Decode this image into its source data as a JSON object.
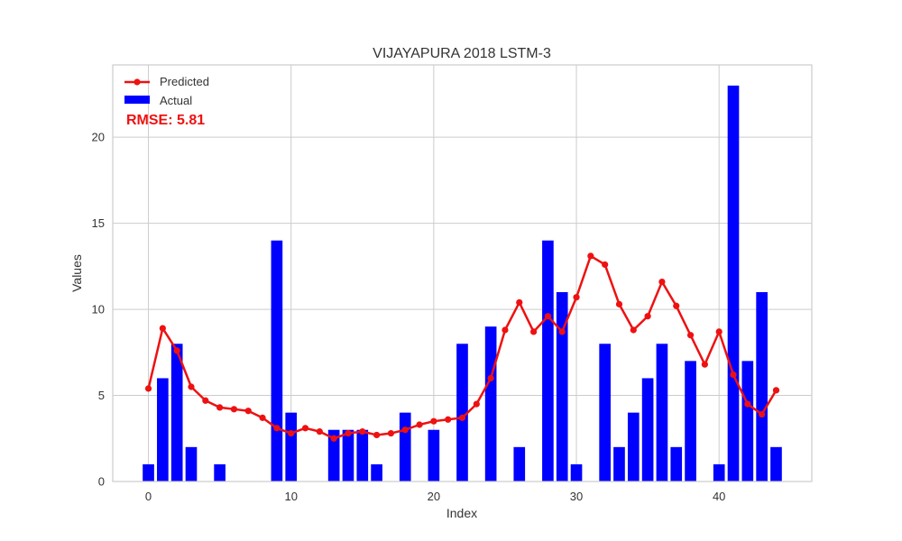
{
  "chart_data": {
    "type": "bar",
    "title": "VIJAYAPURA 2018 LSTM-3",
    "xlabel": "Index",
    "ylabel": "Values",
    "xlim": [
      -2.5,
      46.5
    ],
    "ylim": [
      0,
      24.2
    ],
    "xticks": [
      0,
      10,
      20,
      30,
      40
    ],
    "yticks": [
      0,
      5,
      10,
      15,
      20
    ],
    "grid": true,
    "legend_position": "top-left",
    "annotation": "RMSE: 5.81",
    "colors": {
      "actual": "#0000ff",
      "predicted": "#ee1111",
      "annotation": "#ee1111",
      "grid": "#cccccc",
      "frame": "#cccccc"
    },
    "series": [
      {
        "name": "Predicted",
        "type": "line",
        "values": [
          5.4,
          8.9,
          7.6,
          5.5,
          4.7,
          4.3,
          4.2,
          4.1,
          3.7,
          3.1,
          2.8,
          3.1,
          2.9,
          2.5,
          2.8,
          2.9,
          2.7,
          2.8,
          3.0,
          3.3,
          3.5,
          3.6,
          3.7,
          4.5,
          6.0,
          8.8,
          10.4,
          8.7,
          9.6,
          8.7,
          10.7,
          13.1,
          12.6,
          10.3,
          8.8,
          9.6,
          11.6,
          10.2,
          8.5,
          6.8,
          8.7,
          6.2,
          4.5,
          3.9,
          5.3
        ]
      },
      {
        "name": "Actual",
        "type": "bar",
        "values": [
          1,
          6,
          8,
          2,
          0,
          1,
          0,
          0,
          0,
          14,
          4,
          0,
          0,
          3,
          3,
          3,
          1,
          0,
          4,
          0,
          3,
          0,
          8,
          0,
          9,
          0,
          2,
          0,
          14,
          11,
          1,
          0,
          8,
          2,
          4,
          6,
          8,
          2,
          7,
          0,
          1,
          23,
          7,
          11,
          2
        ]
      }
    ]
  }
}
